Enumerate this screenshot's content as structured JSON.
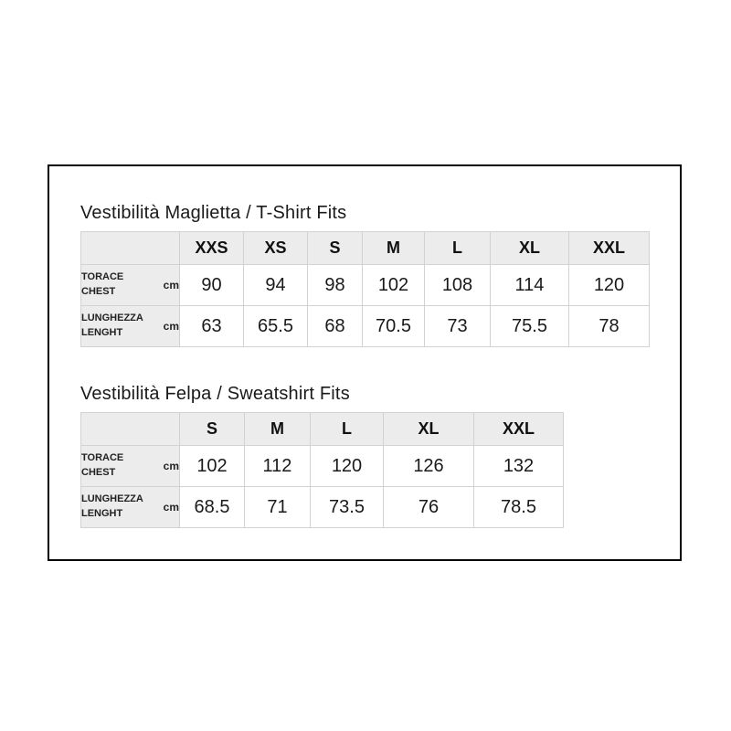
{
  "colors": {
    "frame_border": "#000000",
    "table_border": "#d2d2d2",
    "header_fill": "#ececec",
    "cell_fill": "#ffffff",
    "text": "#1a1a1a"
  },
  "chart_data": [
    {
      "type": "table",
      "title": "Vestibilità Maglietta / T-Shirt Fits",
      "columns": [
        "",
        "XXS",
        "XS",
        "S",
        "M",
        "L",
        "XL",
        "XXL"
      ],
      "rows": [
        {
          "label": [
            "TORACE",
            "CHEST"
          ],
          "unit": "cm",
          "values": [
            90,
            94,
            98,
            102,
            108,
            114,
            120
          ]
        },
        {
          "label": [
            "LUNGHEZZA",
            "LENGHT"
          ],
          "unit": "cm",
          "values": [
            63,
            65.5,
            68,
            70.5,
            73,
            75.5,
            78
          ]
        }
      ]
    },
    {
      "type": "table",
      "title": "Vestibilità Felpa / Sweatshirt Fits",
      "columns": [
        "",
        "S",
        "M",
        "L",
        "XL",
        "XXL"
      ],
      "rows": [
        {
          "label": [
            "TORACE",
            "CHEST"
          ],
          "unit": "cm",
          "values": [
            102,
            112,
            120,
            126,
            132
          ]
        },
        {
          "label": [
            "LUNGHEZZA",
            "LENGHT"
          ],
          "unit": "cm",
          "values": [
            68.5,
            71,
            73.5,
            76,
            78.5
          ]
        }
      ]
    }
  ]
}
